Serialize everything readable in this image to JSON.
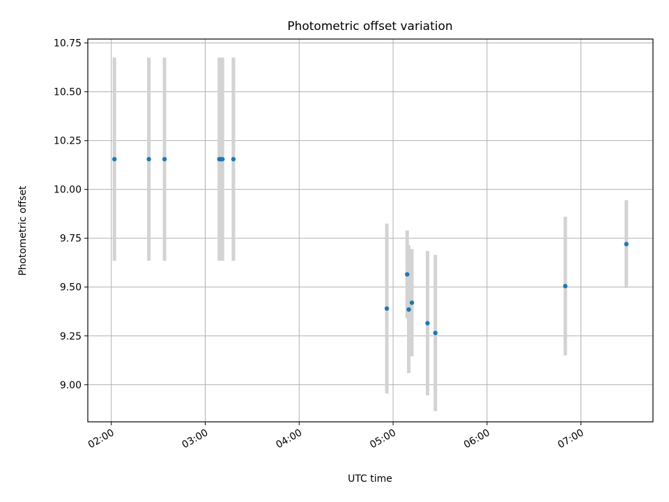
{
  "chart_data": {
    "type": "scatter",
    "title": "Photometric offset variation",
    "xlabel": "UTC time",
    "ylabel": "Photometric offset",
    "xlim": [
      "01:45",
      "07:46"
    ],
    "ylim": [
      8.81,
      10.77
    ],
    "grid": true,
    "x_tick_labels": [
      "02:00",
      "03:00",
      "04:00",
      "05:00",
      "06:00",
      "07:00"
    ],
    "y_tick_labels": [
      "9.00",
      "9.25",
      "9.50",
      "9.75",
      "10.00",
      "10.25",
      "10.50",
      "10.75"
    ],
    "errorbar_color": "#d3d3d3",
    "point_color": "#1f77b4",
    "points": [
      {
        "x": "02:02",
        "y": 10.155,
        "err_low": 9.635,
        "err_high": 10.675
      },
      {
        "x": "02:24",
        "y": 10.155,
        "err_low": 9.635,
        "err_high": 10.675
      },
      {
        "x": "02:34",
        "y": 10.155,
        "err_low": 9.635,
        "err_high": 10.675
      },
      {
        "x": "03:09",
        "y": 10.155,
        "err_low": 9.635,
        "err_high": 10.675
      },
      {
        "x": "03:10",
        "y": 10.155,
        "err_low": 9.635,
        "err_high": 10.675
      },
      {
        "x": "03:11",
        "y": 10.155,
        "err_low": 9.635,
        "err_high": 10.675
      },
      {
        "x": "03:18",
        "y": 10.155,
        "err_low": 9.635,
        "err_high": 10.675
      },
      {
        "x": "04:56",
        "y": 9.39,
        "err_low": 8.955,
        "err_high": 9.825
      },
      {
        "x": "05:09",
        "y": 9.565,
        "err_low": 9.34,
        "err_high": 9.79
      },
      {
        "x": "05:10",
        "y": 9.385,
        "err_low": 9.06,
        "err_high": 9.715
      },
      {
        "x": "05:12",
        "y": 9.42,
        "err_low": 9.145,
        "err_high": 9.695
      },
      {
        "x": "05:22",
        "y": 9.315,
        "err_low": 8.945,
        "err_high": 9.685
      },
      {
        "x": "05:27",
        "y": 9.265,
        "err_low": 8.865,
        "err_high": 9.665
      },
      {
        "x": "06:50",
        "y": 9.505,
        "err_low": 9.15,
        "err_high": 9.86
      },
      {
        "x": "07:29",
        "y": 9.72,
        "err_low": 9.495,
        "err_high": 9.945
      }
    ]
  }
}
